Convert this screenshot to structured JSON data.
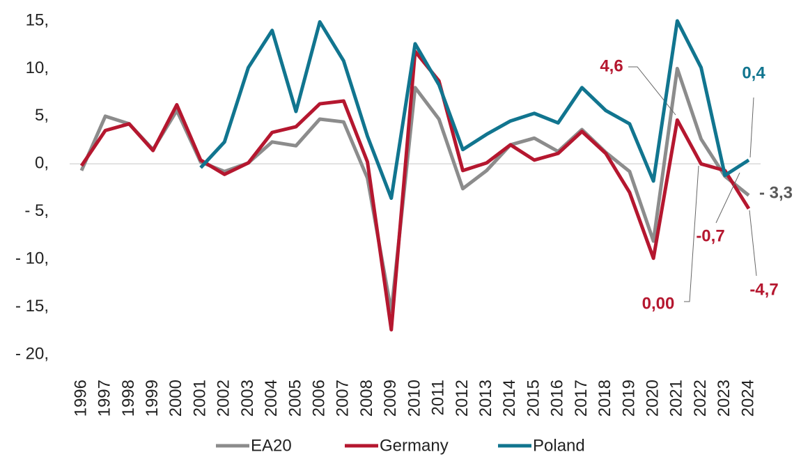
{
  "chart_data": {
    "type": "line",
    "x": [
      "1996",
      "1997",
      "1998",
      "1999",
      "2000",
      "2001",
      "2002",
      "2003",
      "2004",
      "2005",
      "2006",
      "2007",
      "2008",
      "2009",
      "2010",
      "2011",
      "2012",
      "2013",
      "2014",
      "2015",
      "2016",
      "2017",
      "2018",
      "2019",
      "2020",
      "2021",
      "2022",
      "2023",
      "2024"
    ],
    "series": [
      {
        "name": "EA20",
        "color": "#8c8c8c",
        "values": [
          -0.7,
          5.0,
          4.2,
          1.5,
          5.6,
          0.2,
          -0.8,
          0.1,
          2.3,
          1.9,
          4.7,
          4.4,
          -1.5,
          -15.5,
          8.0,
          4.7,
          -2.6,
          -0.7,
          2.0,
          2.7,
          1.3,
          3.6,
          1.2,
          -0.8,
          -8.1,
          10.0,
          2.6,
          -1.3,
          -3.3
        ],
        "value_labels": [
          null,
          null,
          null,
          null,
          null,
          null,
          null,
          null,
          null,
          null,
          null,
          null,
          null,
          null,
          null,
          null,
          null,
          null,
          null,
          null,
          null,
          null,
          null,
          null,
          null,
          null,
          null,
          null,
          "- 3,3"
        ]
      },
      {
        "name": "Germany",
        "color": "#b5172f",
        "values": [
          -0.2,
          3.5,
          4.2,
          1.4,
          6.2,
          0.4,
          -1.1,
          0.1,
          3.3,
          3.9,
          6.3,
          6.6,
          0.2,
          -17.4,
          11.8,
          8.7,
          -0.7,
          0.1,
          2.0,
          0.4,
          1.1,
          3.4,
          1.1,
          -3.0,
          -9.9,
          4.6,
          0.0,
          -0.7,
          -4.7
        ],
        "value_labels": [
          null,
          null,
          null,
          null,
          null,
          null,
          null,
          null,
          null,
          null,
          null,
          null,
          null,
          null,
          null,
          null,
          null,
          null,
          null,
          null,
          null,
          null,
          null,
          null,
          null,
          "4,6",
          "0,00",
          "-0,7",
          "-4,7"
        ]
      },
      {
        "name": "Poland",
        "color": "#11758f",
        "values": [
          null,
          null,
          null,
          null,
          null,
          -0.4,
          2.3,
          10.1,
          14.0,
          5.5,
          14.9,
          10.8,
          2.9,
          -3.6,
          12.6,
          8.3,
          1.5,
          3.1,
          4.5,
          5.3,
          4.3,
          8.0,
          5.6,
          4.2,
          -1.8,
          15.0,
          10.1,
          -1.2,
          0.4
        ],
        "value_labels": [
          null,
          null,
          null,
          null,
          null,
          null,
          null,
          null,
          null,
          null,
          null,
          null,
          null,
          null,
          null,
          null,
          null,
          null,
          null,
          null,
          null,
          null,
          null,
          null,
          null,
          null,
          null,
          null,
          "0,4"
        ]
      }
    ],
    "ylim": [
      -20,
      15
    ],
    "yticks": [
      {
        "value": -20,
        "label": "- 20,"
      },
      {
        "value": -15,
        "label": "- 15,"
      },
      {
        "value": -10,
        "label": "- 10,"
      },
      {
        "value": -5,
        "label": "- 5,"
      },
      {
        "value": 0,
        "label": "0,"
      },
      {
        "value": 5,
        "label": "5,"
      },
      {
        "value": 10,
        "label": "10,"
      },
      {
        "value": 15,
        "label": "15,"
      }
    ],
    "legend": "bottom"
  }
}
